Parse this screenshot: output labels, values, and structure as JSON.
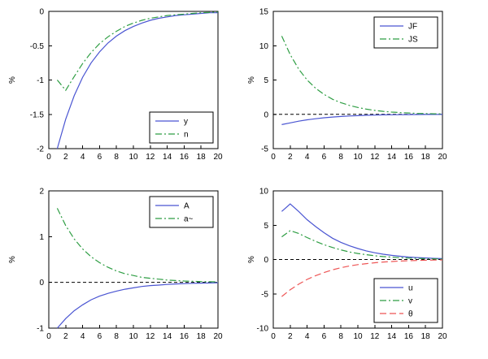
{
  "figure": {
    "background": "#ffffff",
    "axis_color": "#000000"
  },
  "chart_data": [
    {
      "id": "top-left",
      "type": "line",
      "title": "",
      "xlabel": "",
      "ylabel": "%",
      "xlim": [
        0,
        20
      ],
      "ylim": [
        -2,
        0
      ],
      "xticks": [
        0,
        2,
        4,
        6,
        8,
        10,
        12,
        14,
        16,
        18,
        20
      ],
      "yticks": [
        0,
        -0.5,
        -1,
        -1.5,
        -2
      ],
      "zero_line": false,
      "grid": false,
      "legend_pos": "se",
      "x": [
        1,
        2,
        3,
        4,
        5,
        6,
        7,
        8,
        9,
        10,
        11,
        12,
        13,
        14,
        15,
        16,
        17,
        18,
        19,
        20
      ],
      "series": [
        {
          "name": "y",
          "color": "#4a55d2",
          "style": "solid",
          "values": [
            -2,
            -1.57,
            -1.23,
            -0.96,
            -0.75,
            -0.59,
            -0.46,
            -0.36,
            -0.28,
            -0.22,
            -0.17,
            -0.13,
            -0.1,
            -0.08,
            -0.06,
            -0.05,
            -0.04,
            -0.03,
            -0.02,
            -0.02
          ]
        },
        {
          "name": "n",
          "color": "#2f9e44",
          "style": "dashdot",
          "values": [
            -1,
            -1.15,
            -0.95,
            -0.76,
            -0.6,
            -0.47,
            -0.37,
            -0.29,
            -0.22,
            -0.17,
            -0.13,
            -0.1,
            -0.08,
            -0.06,
            -0.05,
            -0.04,
            -0.03,
            -0.02,
            -0.015,
            -0.01
          ]
        }
      ]
    },
    {
      "id": "top-right",
      "type": "line",
      "title": "",
      "xlabel": "",
      "ylabel": "%",
      "xlim": [
        0,
        20
      ],
      "ylim": [
        -5,
        15
      ],
      "xticks": [
        0,
        2,
        4,
        6,
        8,
        10,
        12,
        14,
        16,
        18,
        20
      ],
      "yticks": [
        15,
        10,
        5,
        0,
        -5
      ],
      "zero_line": true,
      "grid": false,
      "legend_pos": "ne",
      "x": [
        1,
        2,
        3,
        4,
        5,
        6,
        7,
        8,
        9,
        10,
        11,
        12,
        13,
        14,
        15,
        16,
        17,
        18,
        19,
        20
      ],
      "series": [
        {
          "name": "JF",
          "color": "#4a55d2",
          "style": "solid",
          "values": [
            -1.5,
            -1.25,
            -1,
            -0.8,
            -0.64,
            -0.5,
            -0.4,
            -0.31,
            -0.24,
            -0.19,
            -0.14,
            -0.11,
            -0.08,
            -0.06,
            -0.05,
            -0.04,
            -0.03,
            -0.02,
            -0.015,
            -0.01
          ]
        },
        {
          "name": "JS",
          "color": "#2f9e44",
          "style": "dashdot",
          "values": [
            11.4,
            8.7,
            6.6,
            5,
            3.8,
            2.9,
            2.2,
            1.7,
            1.3,
            1,
            0.75,
            0.57,
            0.43,
            0.33,
            0.25,
            0.19,
            0.14,
            0.11,
            0.08,
            0.06
          ]
        }
      ]
    },
    {
      "id": "bottom-left",
      "type": "line",
      "title": "",
      "xlabel": "",
      "ylabel": "%",
      "xlim": [
        0,
        20
      ],
      "ylim": [
        -1,
        2
      ],
      "xticks": [
        0,
        2,
        4,
        6,
        8,
        10,
        12,
        14,
        16,
        18,
        20
      ],
      "yticks": [
        2,
        1,
        0,
        -1
      ],
      "zero_line": true,
      "grid": false,
      "legend_pos": "ne",
      "x": [
        1,
        2,
        3,
        4,
        5,
        6,
        7,
        8,
        9,
        10,
        11,
        12,
        13,
        14,
        15,
        16,
        17,
        18,
        19,
        20
      ],
      "series": [
        {
          "name": "A",
          "color": "#4a55d2",
          "style": "solid",
          "values": [
            -1,
            -0.79,
            -0.62,
            -0.49,
            -0.38,
            -0.3,
            -0.24,
            -0.19,
            -0.15,
            -0.12,
            -0.09,
            -0.07,
            -0.06,
            -0.045,
            -0.035,
            -0.027,
            -0.021,
            -0.017,
            -0.013,
            -0.01
          ]
        },
        {
          "name": "a~",
          "color": "#2f9e44",
          "style": "dashdot",
          "values": [
            1.62,
            1.24,
            0.95,
            0.73,
            0.56,
            0.43,
            0.33,
            0.25,
            0.19,
            0.15,
            0.11,
            0.09,
            0.07,
            0.05,
            0.04,
            0.03,
            0.024,
            0.018,
            0.014,
            0.01
          ]
        }
      ]
    },
    {
      "id": "bottom-right",
      "type": "line",
      "title": "",
      "xlabel": "",
      "ylabel": "%",
      "xlim": [
        0,
        20
      ],
      "ylim": [
        -10,
        10
      ],
      "xticks": [
        0,
        2,
        4,
        6,
        8,
        10,
        12,
        14,
        16,
        18,
        20
      ],
      "yticks": [
        10,
        5,
        0,
        -5,
        -10
      ],
      "zero_line": true,
      "grid": false,
      "legend_pos": "se",
      "x": [
        1,
        2,
        3,
        4,
        5,
        6,
        7,
        8,
        9,
        10,
        11,
        12,
        13,
        14,
        15,
        16,
        17,
        18,
        19,
        20
      ],
      "series": [
        {
          "name": "u",
          "color": "#4a55d2",
          "style": "solid",
          "values": [
            7,
            8.1,
            7,
            5.8,
            4.8,
            3.9,
            3.1,
            2.5,
            2,
            1.6,
            1.25,
            0.98,
            0.77,
            0.6,
            0.47,
            0.36,
            0.28,
            0.22,
            0.17,
            0.13
          ]
        },
        {
          "name": "v",
          "color": "#2f9e44",
          "style": "dashdot",
          "values": [
            3.3,
            4.2,
            3.8,
            3.2,
            2.65,
            2.15,
            1.75,
            1.4,
            1.1,
            0.88,
            0.7,
            0.55,
            0.43,
            0.34,
            0.26,
            0.2,
            0.16,
            0.12,
            0.1,
            0.07
          ]
        },
        {
          "name": "θ",
          "color": "#ee5555",
          "style": "dashed",
          "values": [
            -5.4,
            -4.4,
            -3.6,
            -2.9,
            -2.35,
            -1.9,
            -1.5,
            -1.2,
            -0.95,
            -0.75,
            -0.6,
            -0.47,
            -0.37,
            -0.29,
            -0.23,
            -0.18,
            -0.14,
            -0.11,
            -0.08,
            -0.06
          ]
        }
      ]
    }
  ]
}
